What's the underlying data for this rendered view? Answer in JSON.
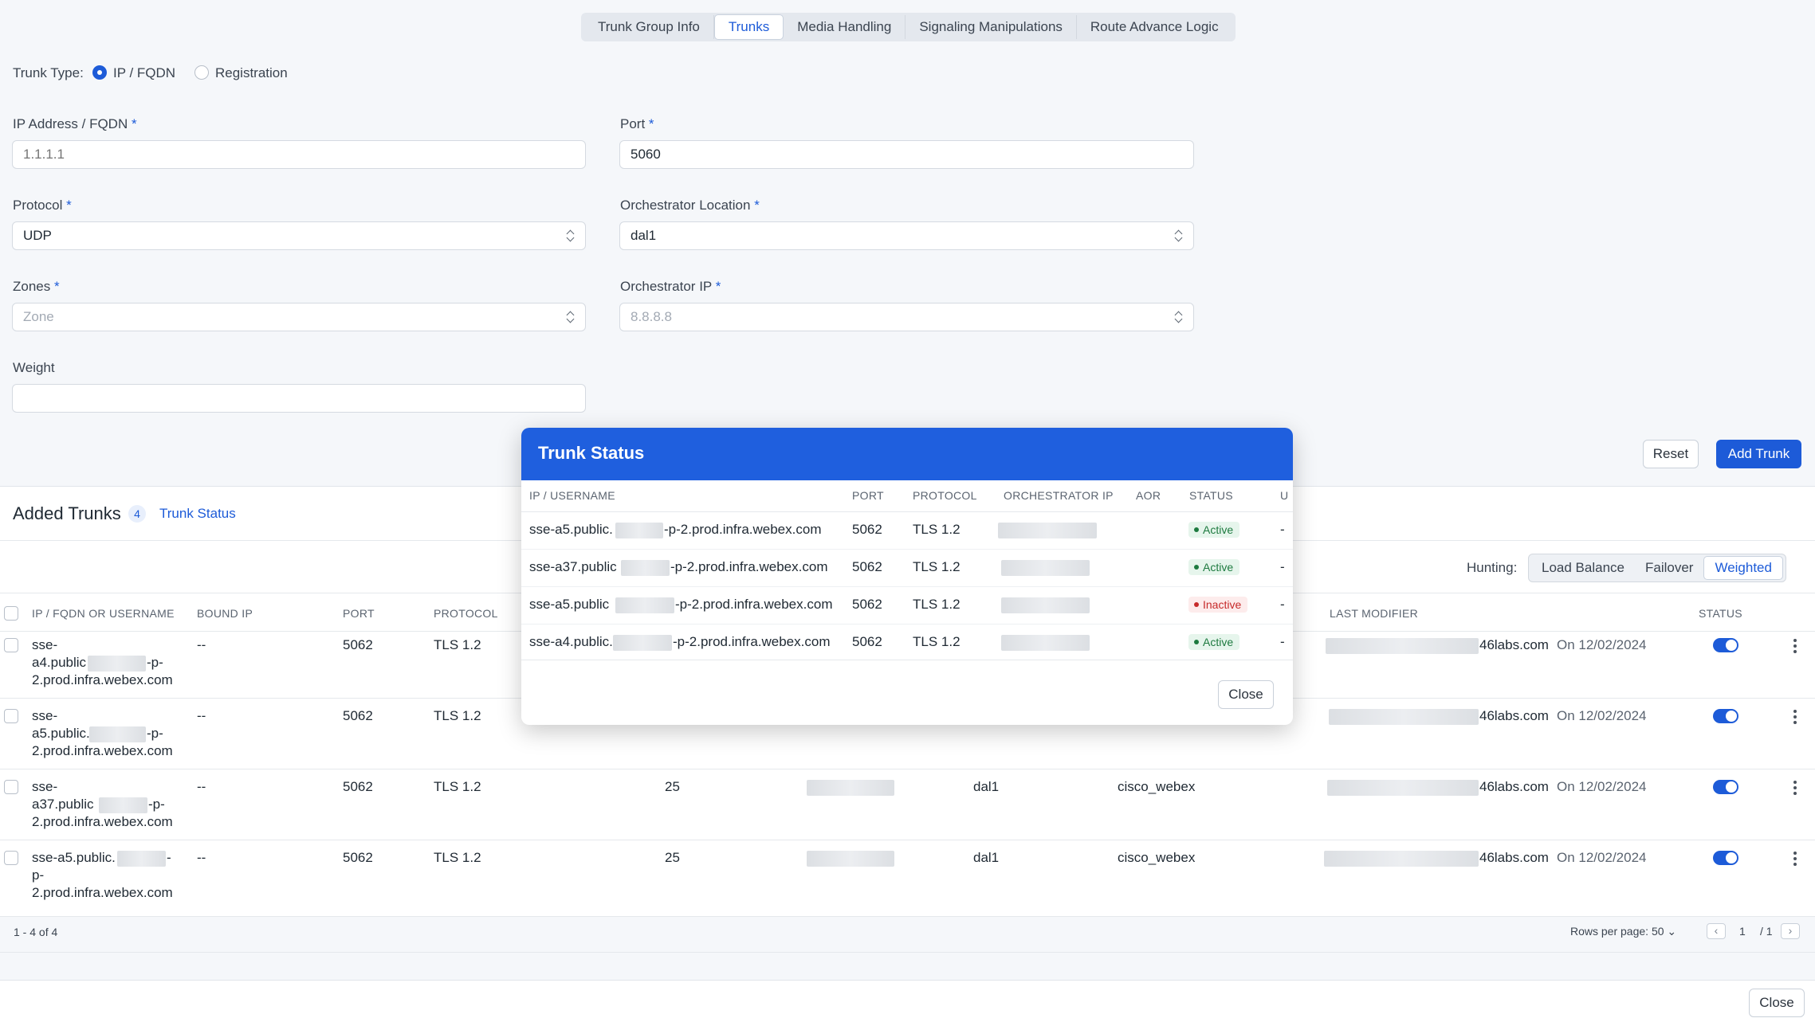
{
  "tabs": [
    "Trunk Group Info",
    "Trunks",
    "Media Handling",
    "Signaling Manipulations",
    "Route Advance Logic"
  ],
  "trunk_type": {
    "label": "Trunk Type:",
    "options": [
      "IP / FQDN",
      "Registration"
    ],
    "selected": "IP / FQDN"
  },
  "form": {
    "ip": {
      "label": "IP Address / FQDN",
      "placeholder": "1.1.1.1",
      "value": ""
    },
    "port": {
      "label": "Port",
      "value": "5060"
    },
    "protocol": {
      "label": "Protocol",
      "value": "UDP"
    },
    "orch_location": {
      "label": "Orchestrator Location",
      "value": "dal1"
    },
    "zones": {
      "label": "Zones",
      "placeholder": "Zone"
    },
    "orch_ip": {
      "label": "Orchestrator IP",
      "placeholder": "8.8.8.8"
    },
    "weight": {
      "label": "Weight",
      "value": ""
    },
    "required_mark": "*"
  },
  "buttons": {
    "reset": "Reset",
    "add_trunk": "Add Trunk",
    "close": "Close"
  },
  "added": {
    "title": "Added Trunks",
    "count": "4",
    "status_link": "Trunk Status",
    "hunting": {
      "label": "Hunting:",
      "options": [
        "Load Balance",
        "Failover",
        "Weighted"
      ],
      "selected": "Weighted"
    },
    "columns": [
      "IP / FQDN OR USERNAME",
      "BOUND IP",
      "PORT",
      "PROTOCOL",
      "LAST MODIFIER",
      "STATUS"
    ],
    "rows": [
      {
        "name": [
          "sse-",
          "a4.public",
          "-p-",
          "2.prod.infra.webex.com"
        ],
        "bound": "--",
        "port": "5062",
        "protocol": "TLS 1.2",
        "weight": "",
        "location": "",
        "zone": "",
        "modifier": "46labs.com",
        "date": "On 12/02/2024"
      },
      {
        "name": [
          "sse-",
          "a5.public.",
          "-p-",
          "2.prod.infra.webex.com"
        ],
        "bound": "--",
        "port": "5062",
        "protocol": "TLS 1.2",
        "weight": "",
        "location": "",
        "zone": "",
        "modifier": "46labs.com",
        "date": "On 12/02/2024"
      },
      {
        "name": [
          "sse-",
          "a37.public",
          "-p-",
          "2.prod.infra.webex.com"
        ],
        "bound": "--",
        "port": "5062",
        "protocol": "TLS 1.2",
        "weight": "25",
        "location": "dal1",
        "zone": "cisco_webex",
        "modifier": "46labs.com",
        "date": "On 12/02/2024"
      },
      {
        "name": [
          "sse-a5.public.",
          "-",
          "p-",
          "2.prod.infra.webex.com"
        ],
        "bound": "--",
        "port": "5062",
        "protocol": "TLS 1.2",
        "weight": "25",
        "location": "dal1",
        "zone": "cisco_webex",
        "modifier": "46labs.com",
        "date": "On 12/02/2024"
      }
    ],
    "range": "1 - 4 of 4",
    "rows_per_page": "Rows per page: 50",
    "page": "1",
    "pages": "/ 1"
  },
  "modal": {
    "title": "Trunk Status",
    "columns": [
      "IP / USERNAME",
      "PORT",
      "PROTOCOL",
      "ORCHESTRATOR IP",
      "AOR",
      "STATUS",
      "U"
    ],
    "rows": [
      {
        "pre": "sse-a5.public.",
        "post": "-p-2.prod.infra.webex.com",
        "port": "5062",
        "protocol": "TLS 1.2",
        "status": "Active",
        "extra": "-"
      },
      {
        "pre": "sse-a37.public",
        "post": "-p-2.prod.infra.webex.com",
        "port": "5062",
        "protocol": "TLS 1.2",
        "status": "Active",
        "extra": "-"
      },
      {
        "pre": "sse-a5.public",
        "post": "-p-2.prod.infra.webex.com",
        "port": "5062",
        "protocol": "TLS 1.2",
        "status": "Inactive",
        "extra": "-"
      },
      {
        "pre": "sse-a4.public.",
        "post": "-p-2.prod.infra.webex.com",
        "port": "5062",
        "protocol": "TLS 1.2",
        "status": "Active",
        "extra": "-"
      }
    ],
    "close": "Close"
  },
  "colors": {
    "accent": "#1d5bd8",
    "modal_header": "#1f5fde",
    "active": "#1d7a3f",
    "inactive": "#c62a2a"
  }
}
